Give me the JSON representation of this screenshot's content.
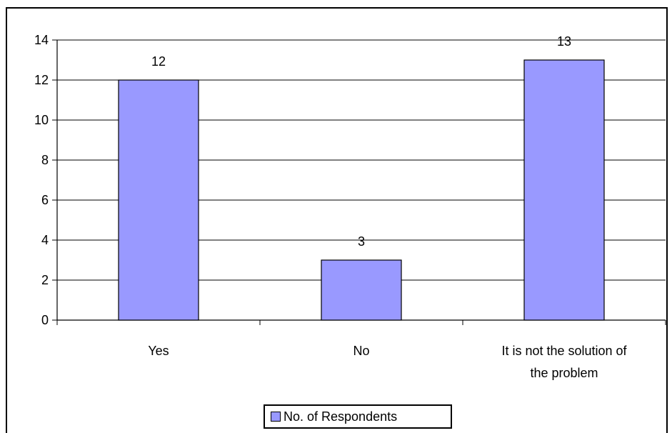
{
  "chart_data": {
    "type": "bar",
    "categories": [
      "Yes",
      "No",
      "It is not the solution of the problem"
    ],
    "category_lines": [
      [
        "Yes"
      ],
      [
        "No"
      ],
      [
        "It is not the solution of",
        "the problem"
      ]
    ],
    "series": [
      {
        "name": "No. of Respondents",
        "values": [
          12,
          3,
          13
        ],
        "color": "#9999ff"
      }
    ],
    "ylim": [
      0,
      14
    ],
    "yticks": [
      0,
      2,
      4,
      6,
      8,
      10,
      12,
      14
    ],
    "grid": true,
    "legend_position": "bottom",
    "title": "",
    "xlabel": "",
    "ylabel": ""
  }
}
